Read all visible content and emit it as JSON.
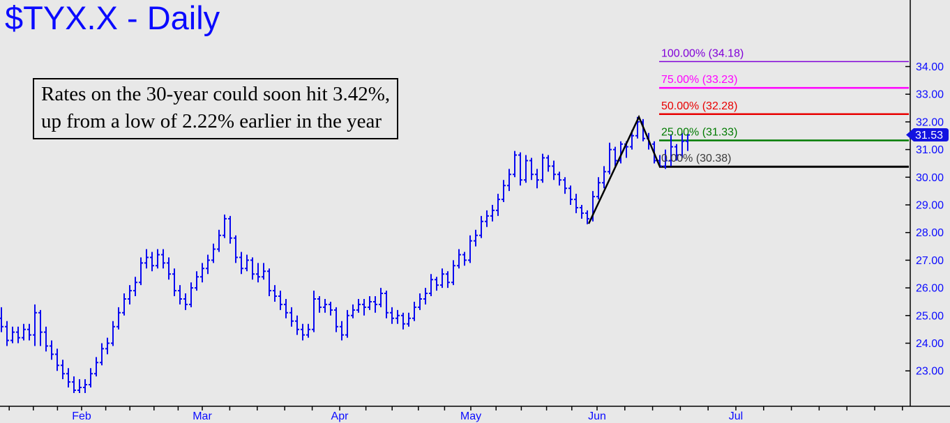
{
  "title": "$TYX.X - Daily",
  "annotation": {
    "line1": "Rates on the 30-year could soon hit 3.42%,",
    "line2": "up from a low of 2.22% earlier in the year"
  },
  "price_tag": {
    "label": "31.53"
  },
  "colors": {
    "background": "#e8e8e8",
    "title": "#0a0aff",
    "axis": "#000000",
    "axis_labels": "#0a0aff",
    "bars": "#0808f0",
    "trendline": "#000000",
    "price_tag_bg": "#1212e0",
    "price_tag_text": "#ffffff"
  },
  "chart_data": {
    "type": "bar",
    "subtype": "ohlc-daily",
    "symbol": "$TYX.X",
    "timeframe": "Daily",
    "title": "$TYX.X - Daily",
    "xlabel": "",
    "ylabel": "",
    "grid": false,
    "y_ticks": [
      34,
      33,
      32,
      31,
      30,
      29,
      28,
      27,
      26,
      25,
      24,
      23
    ],
    "ylim": [
      21.7,
      36.4
    ],
    "last_price": 31.53,
    "x_months": [
      {
        "label": "Feb",
        "x": 117
      },
      {
        "label": "Mar",
        "x": 290
      },
      {
        "label": "Apr",
        "x": 487
      },
      {
        "label": "May",
        "x": 675
      },
      {
        "label": "Jun",
        "x": 856
      },
      {
        "label": "Jul",
        "x": 1055
      }
    ],
    "fib_levels": [
      {
        "label": "100.00% (34.18)",
        "value": 34.18,
        "color": "#8000d8",
        "label_color": "#8000d8",
        "width": 1.5
      },
      {
        "label": "75.00% (33.23)",
        "value": 33.23,
        "color": "#ff00ff",
        "label_color": "#ff00ff",
        "width": 2.5
      },
      {
        "label": "50.00% (32.28)",
        "value": 32.28,
        "color": "#e80000",
        "label_color": "#e80000",
        "width": 2.5
      },
      {
        "label": "25.00% (31.33)",
        "value": 31.33,
        "color": "#007a00",
        "label_color": "#007a00",
        "width": 2.5
      },
      {
        "label": "0.00% (30.38)",
        "value": 30.38,
        "color": "#000000",
        "label_color": "#3a3a3a",
        "width": 3
      }
    ],
    "trendline_points": [
      [
        844,
        28.32
      ],
      [
        916,
        32.18
      ],
      [
        946,
        30.38
      ]
    ],
    "bars_ohlc": [
      [
        24.9,
        25.3,
        24.4,
        24.6
      ],
      [
        24.6,
        24.8,
        23.9,
        24.1
      ],
      [
        24.1,
        24.6,
        24.0,
        24.4
      ],
      [
        24.4,
        24.6,
        24.0,
        24.2
      ],
      [
        24.2,
        24.7,
        24.1,
        24.5
      ],
      [
        24.5,
        24.7,
        24.1,
        24.3
      ],
      [
        24.3,
        25.4,
        23.9,
        25.1
      ],
      [
        25.1,
        25.2,
        23.9,
        24.4
      ],
      [
        24.4,
        24.6,
        23.7,
        23.9
      ],
      [
        23.9,
        24.1,
        23.4,
        23.6
      ],
      [
        23.6,
        23.8,
        23.0,
        23.2
      ],
      [
        23.2,
        23.4,
        22.7,
        22.9
      ],
      [
        22.9,
        23.1,
        22.4,
        22.6
      ],
      [
        22.6,
        22.8,
        22.2,
        22.3
      ],
      [
        22.3,
        22.7,
        22.2,
        22.4
      ],
      [
        22.4,
        22.7,
        22.2,
        22.5
      ],
      [
        22.5,
        23.1,
        22.4,
        22.9
      ],
      [
        22.9,
        23.5,
        22.8,
        23.3
      ],
      [
        23.3,
        24.0,
        23.2,
        23.8
      ],
      [
        23.8,
        24.2,
        23.6,
        24.0
      ],
      [
        24.0,
        24.8,
        23.9,
        24.6
      ],
      [
        24.6,
        25.3,
        24.5,
        25.1
      ],
      [
        25.1,
        25.8,
        25.0,
        25.6
      ],
      [
        25.6,
        26.1,
        25.4,
        25.9
      ],
      [
        25.9,
        26.4,
        25.7,
        26.2
      ],
      [
        26.2,
        27.1,
        26.1,
        26.9
      ],
      [
        26.9,
        27.4,
        26.7,
        27.1
      ],
      [
        27.1,
        27.3,
        26.6,
        26.8
      ],
      [
        26.8,
        27.4,
        26.7,
        27.2
      ],
      [
        27.2,
        27.4,
        26.7,
        26.9
      ],
      [
        26.9,
        27.1,
        26.3,
        26.5
      ],
      [
        26.5,
        26.7,
        25.7,
        25.9
      ],
      [
        25.9,
        26.1,
        25.4,
        25.6
      ],
      [
        25.6,
        25.8,
        25.2,
        25.4
      ],
      [
        25.4,
        26.2,
        25.3,
        26.0
      ],
      [
        26.0,
        26.6,
        25.9,
        26.4
      ],
      [
        26.4,
        26.9,
        26.2,
        26.7
      ],
      [
        26.7,
        27.2,
        26.5,
        27.0
      ],
      [
        27.0,
        27.6,
        26.9,
        27.4
      ],
      [
        27.4,
        28.1,
        27.3,
        27.9
      ],
      [
        27.9,
        28.65,
        27.8,
        28.5
      ],
      [
        28.5,
        28.6,
        27.6,
        27.8
      ],
      [
        27.8,
        27.9,
        26.9,
        27.1
      ],
      [
        27.1,
        27.3,
        26.5,
        26.7
      ],
      [
        26.7,
        27.2,
        26.6,
        27.0
      ],
      [
        27.0,
        27.1,
        26.3,
        26.5
      ],
      [
        26.5,
        26.9,
        26.2,
        26.4
      ],
      [
        26.4,
        26.9,
        26.3,
        26.6
      ],
      [
        26.6,
        26.7,
        25.7,
        25.9
      ],
      [
        25.9,
        26.1,
        25.5,
        25.7
      ],
      [
        25.7,
        25.9,
        25.2,
        25.4
      ],
      [
        25.4,
        25.6,
        24.9,
        25.1
      ],
      [
        25.1,
        25.3,
        24.6,
        24.8
      ],
      [
        24.8,
        25.0,
        24.3,
        24.5
      ],
      [
        24.5,
        24.7,
        24.1,
        24.3
      ],
      [
        24.3,
        24.7,
        24.2,
        24.5
      ],
      [
        24.5,
        25.9,
        24.4,
        25.6
      ],
      [
        25.6,
        25.7,
        25.1,
        25.3
      ],
      [
        25.3,
        25.6,
        25.1,
        25.4
      ],
      [
        25.4,
        25.5,
        25.0,
        25.2
      ],
      [
        25.2,
        25.3,
        24.4,
        24.6
      ],
      [
        24.6,
        24.8,
        24.1,
        24.3
      ],
      [
        24.3,
        25.2,
        24.2,
        25.0
      ],
      [
        25.0,
        25.4,
        24.9,
        25.2
      ],
      [
        25.2,
        25.6,
        25.1,
        25.4
      ],
      [
        25.4,
        25.6,
        25.0,
        25.3
      ],
      [
        25.3,
        25.7,
        25.2,
        25.5
      ],
      [
        25.5,
        25.7,
        25.1,
        25.4
      ],
      [
        25.4,
        26.0,
        25.3,
        25.8
      ],
      [
        25.8,
        25.9,
        24.9,
        25.1
      ],
      [
        25.1,
        25.3,
        24.7,
        24.9
      ],
      [
        24.9,
        25.2,
        24.7,
        25.0
      ],
      [
        25.0,
        25.1,
        24.5,
        24.7
      ],
      [
        24.7,
        25.1,
        24.6,
        24.9
      ],
      [
        24.9,
        25.5,
        24.8,
        25.3
      ],
      [
        25.3,
        25.8,
        25.2,
        25.6
      ],
      [
        25.6,
        26.0,
        25.4,
        25.8
      ],
      [
        25.8,
        26.5,
        25.7,
        26.3
      ],
      [
        26.3,
        26.4,
        25.9,
        26.1
      ],
      [
        26.1,
        26.7,
        26.0,
        26.5
      ],
      [
        26.5,
        26.6,
        26.0,
        26.2
      ],
      [
        26.2,
        27.0,
        26.1,
        26.8
      ],
      [
        26.8,
        27.4,
        26.7,
        27.2
      ],
      [
        27.2,
        27.3,
        26.8,
        27.0
      ],
      [
        27.0,
        27.9,
        26.9,
        27.7
      ],
      [
        27.7,
        28.1,
        27.5,
        27.9
      ],
      [
        27.9,
        28.6,
        27.8,
        28.4
      ],
      [
        28.4,
        28.8,
        28.2,
        28.6
      ],
      [
        28.6,
        29.0,
        28.4,
        28.8
      ],
      [
        28.8,
        29.4,
        28.6,
        29.2
      ],
      [
        29.2,
        29.9,
        29.1,
        29.7
      ],
      [
        29.7,
        30.3,
        29.5,
        30.1
      ],
      [
        30.1,
        30.95,
        30.0,
        30.8
      ],
      [
        30.8,
        30.9,
        29.7,
        29.9
      ],
      [
        29.9,
        30.8,
        29.8,
        30.6
      ],
      [
        30.6,
        30.7,
        29.9,
        30.1
      ],
      [
        30.1,
        30.3,
        29.6,
        29.9
      ],
      [
        29.9,
        30.85,
        29.8,
        30.7
      ],
      [
        30.7,
        30.8,
        30.2,
        30.4
      ],
      [
        30.4,
        30.6,
        29.9,
        30.1
      ],
      [
        30.1,
        30.2,
        29.7,
        29.9
      ],
      [
        29.9,
        30.0,
        29.4,
        29.6
      ],
      [
        29.6,
        29.7,
        29.0,
        29.2
      ],
      [
        29.2,
        29.4,
        28.7,
        28.9
      ],
      [
        28.9,
        29.0,
        28.5,
        28.7
      ],
      [
        28.7,
        28.8,
        28.3,
        28.5
      ],
      [
        28.5,
        29.5,
        28.4,
        29.3
      ],
      [
        29.3,
        30.0,
        29.2,
        29.8
      ],
      [
        29.8,
        30.4,
        29.6,
        30.2
      ],
      [
        30.2,
        31.25,
        30.1,
        31.0
      ],
      [
        31.0,
        31.1,
        30.4,
        30.6
      ],
      [
        30.6,
        31.3,
        30.5,
        31.2
      ],
      [
        31.2,
        31.3,
        30.7,
        31.1
      ],
      [
        31.1,
        31.7,
        31.0,
        31.5
      ],
      [
        31.5,
        32.18,
        31.4,
        32.0
      ],
      [
        32.0,
        32.1,
        31.3,
        31.4
      ],
      [
        31.4,
        31.6,
        31.0,
        31.2
      ],
      [
        31.2,
        31.3,
        30.5,
        30.6
      ],
      [
        30.6,
        30.8,
        30.38,
        30.4
      ],
      [
        30.4,
        31.0,
        30.3,
        30.6
      ],
      [
        30.6,
        31.55,
        30.4,
        31.1
      ],
      [
        31.1,
        31.2,
        30.6,
        30.8
      ],
      [
        30.8,
        31.6,
        30.7,
        31.3
      ],
      [
        31.3,
        31.56,
        30.95,
        31.53
      ]
    ]
  }
}
